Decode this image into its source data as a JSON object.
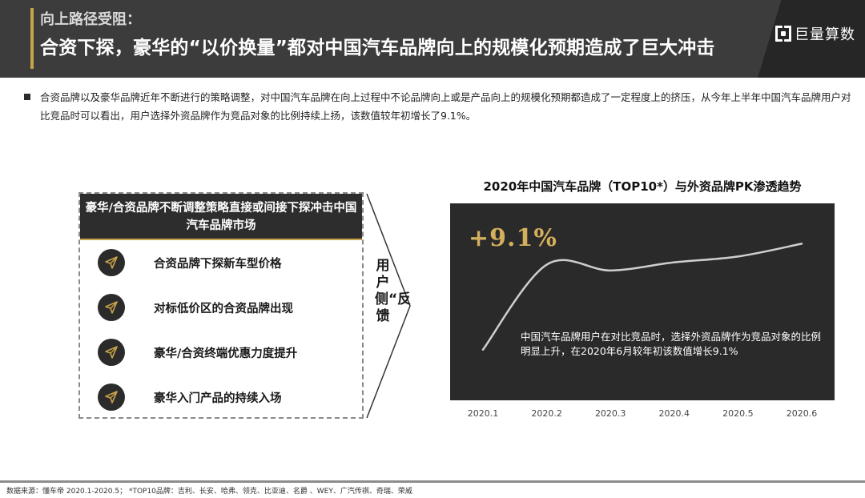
{
  "header": {
    "subtitle": "向上路径受阻：",
    "title": "合资下探，豪华的“以价换量”都对中国汽车品牌向上的规模化预期造成了巨大冲击",
    "logo_text": "巨量算数",
    "bg_color": "#3c3c3c",
    "accent_color": "#c9a24a"
  },
  "intro": "合资品牌以及豪华品牌近年不断进行的策略调整，对中国汽车品牌在向上过程中不论品牌向上或是产品向上的规模化预期都造成了一定程度上的挤压，从今年上半年中国汽车品牌用户对比竞品时可以看出，用户选择外资品牌作为竞品对象的比例持续上扬，该数值较年初增长了9.1%。",
  "panel": {
    "header": "豪华/合资品牌不断调整策略直接或间接下探冲击中国汽车品牌市场",
    "items": [
      {
        "label": "合资品牌下探新车型价格",
        "icon": "paper-plane-icon"
      },
      {
        "label": "对标低价区的合资品牌出现",
        "icon": "paper-plane-icon"
      },
      {
        "label": "豪华/合资终端优惠力度提升",
        "icon": "paper-plane-icon"
      },
      {
        "label": "豪华入门产品的持续入场",
        "icon": "paper-plane-icon"
      }
    ]
  },
  "arrow_label": "用户侧“反馈",
  "chart_data": {
    "type": "line",
    "title": "2020年中国汽车品牌（TOP10*）与外资品牌PK渗透趋势",
    "categories": [
      "2020.1",
      "2020.2",
      "2020.3",
      "2020.4",
      "2020.5",
      "2020.6"
    ],
    "series": [
      {
        "values": [
          0.0,
          7.3,
          6.8,
          7.5,
          8.0,
          9.1
        ]
      }
    ],
    "ylim": [
      -0.5,
      10.5
    ],
    "highlight": "+9.1%",
    "annotation": "中国汽车品牌用户在对比竞品时，选择外资品牌作为竞品对象的比例明显上升，在2020年6月较年初该数值增长9.1%",
    "grid": false,
    "bg_color": "#2a2a2a",
    "line_color": "#cfcfcf",
    "highlight_color": "#d4b05c"
  },
  "footer": "数据来源：懂车帝 2020.1-2020.5；    *TOP10品牌：吉利、长安、哈弗、领克、比亚迪、名爵 、WEY、广汽传祺、奇瑞、荣威"
}
